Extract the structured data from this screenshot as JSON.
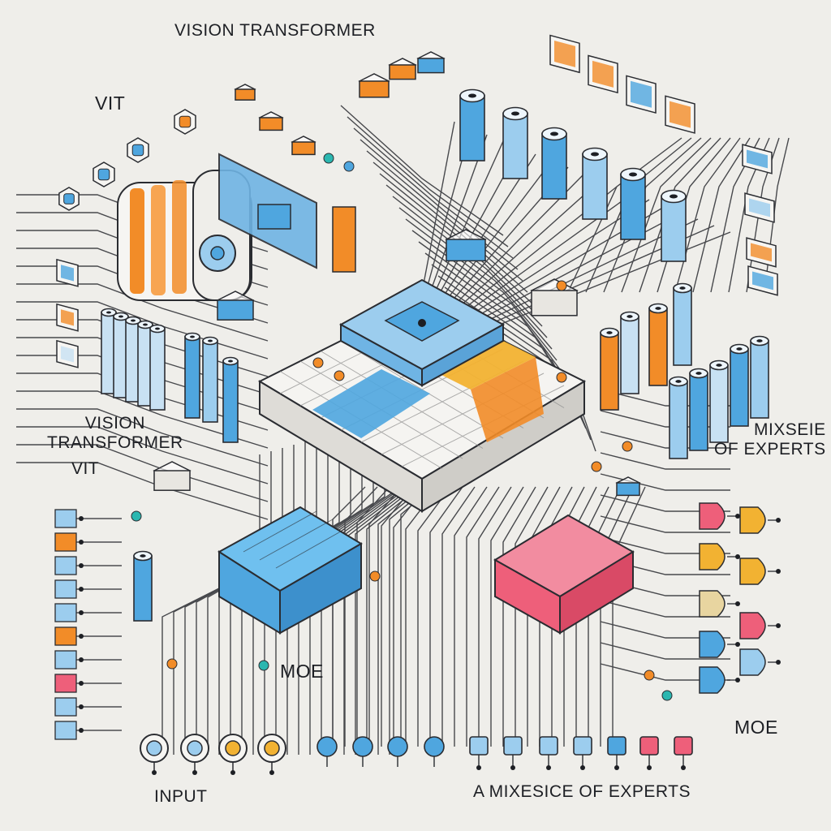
{
  "labels": {
    "top_title": "VISION TRANSFORMER",
    "vit_top": "VIT",
    "left_title": "VISION\nTRANSFORMER",
    "vit_left": "VIT",
    "mixture_right": "MIXSEIE\nOF EXPERTS",
    "moe_center": "MOE",
    "moe_right": "MOE",
    "input": "INPUT",
    "bottom_caption": "A MIXESICE OF EXPERTS"
  },
  "colors": {
    "background": "#efeeea",
    "ink": "#1d1f24",
    "blue": "#4fa6df",
    "light_blue": "#9ccdee",
    "orange": "#f28c28",
    "pink": "#ee5f7a",
    "teal": "#2bb7b0",
    "yellow": "#f2b232"
  },
  "icons": {
    "central_block": "grid-processor-icon",
    "vit_module": "transformer-core-icon",
    "expert_nodes": "expert-gate-icon",
    "input_nodes": "input-node-icon"
  }
}
